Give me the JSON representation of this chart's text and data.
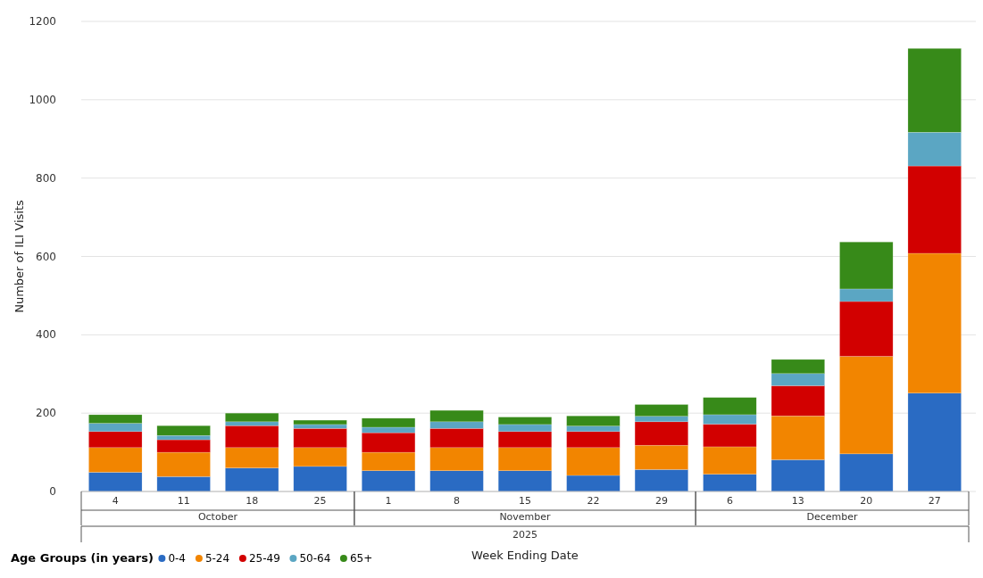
{
  "chart_data": {
    "type": "bar",
    "stacked": true,
    "xlabel": "Week Ending Date",
    "ylabel": "Number of ILI Visits",
    "legend_title": "Age Groups (in years)",
    "legend": "bottom left",
    "grid": "y",
    "categories": [
      "4",
      "11",
      "18",
      "25",
      "1",
      "8",
      "15",
      "22",
      "29",
      "6",
      "13",
      "20",
      "27"
    ],
    "annotations": [
      "October",
      "November",
      "December",
      "2025"
    ],
    "ylim": [
      0,
      1200
    ],
    "yticks": [
      0,
      200,
      400,
      600,
      800,
      1000,
      1200
    ],
    "series": [
      {
        "name": "0-4",
        "color": "#2a6bc3",
        "values": [
          49,
          38,
          60,
          64,
          53,
          53,
          53,
          41,
          56,
          44,
          81,
          96,
          251
        ]
      },
      {
        "name": "5-24",
        "color": "#f28500",
        "values": [
          63,
          62,
          52,
          48,
          47,
          59,
          59,
          71,
          62,
          70,
          112,
          249,
          357
        ]
      },
      {
        "name": "25-49",
        "color": "#d20000",
        "values": [
          41,
          32,
          56,
          49,
          50,
          49,
          41,
          41,
          60,
          58,
          77,
          140,
          223
        ]
      },
      {
        "name": "50-64",
        "color": "#5ba6c3",
        "values": [
          21,
          11,
          10,
          10,
          14,
          17,
          18,
          14,
          14,
          24,
          31,
          32,
          86
        ]
      },
      {
        "name": "65+",
        "color": "#378a19",
        "values": [
          22,
          25,
          22,
          11,
          23,
          29,
          19,
          26,
          30,
          44,
          36,
          120,
          214
        ]
      }
    ]
  }
}
